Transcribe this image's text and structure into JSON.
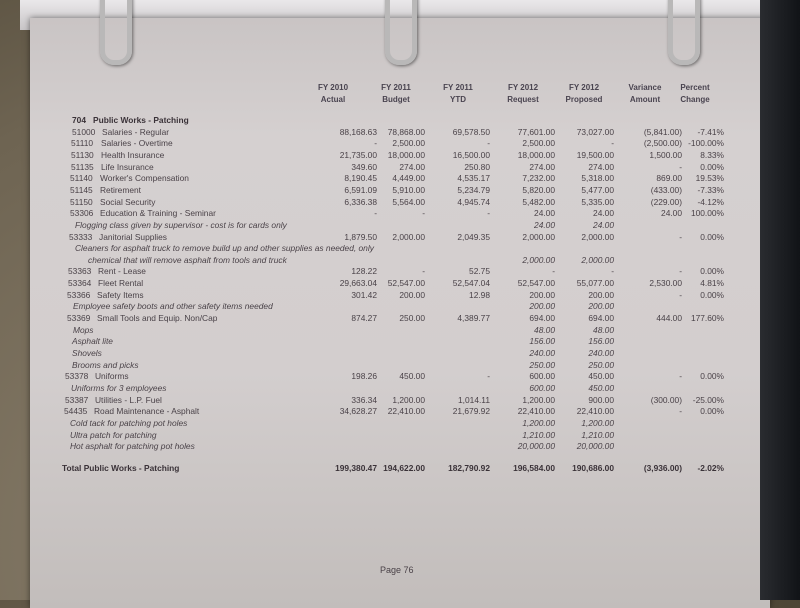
{
  "headers": [
    {
      "line1": "FY 2010",
      "line2": "Actual"
    },
    {
      "line1": "FY 2011",
      "line2": "Budget"
    },
    {
      "line1": "FY 2011",
      "line2": "YTD"
    },
    {
      "line1": "FY 2012",
      "line2": "Request"
    },
    {
      "line1": "FY 2012",
      "line2": "Proposed"
    },
    {
      "line1": "Variance",
      "line2": "Amount"
    },
    {
      "line1": "Percent",
      "line2": "Change"
    }
  ],
  "rows": [
    {
      "code": "704",
      "label": "Public Works - Patching",
      "type": "section",
      "values": [
        "",
        "",
        "",
        "",
        "",
        "",
        ""
      ]
    },
    {
      "code": "51000",
      "label": "Salaries - Regular",
      "values": [
        "88,168.63",
        "78,868.00",
        "69,578.50",
        "77,601.00",
        "73,027.00",
        "(5,841.00)",
        "-7.41%"
      ]
    },
    {
      "code": "51110",
      "label": "Salaries - Overtime",
      "values": [
        "-",
        "2,500.00",
        "-",
        "2,500.00",
        "-",
        "(2,500.00)",
        "-100.00%"
      ]
    },
    {
      "code": "51130",
      "label": "Health Insurance",
      "values": [
        "21,735.00",
        "18,000.00",
        "16,500.00",
        "18,000.00",
        "19,500.00",
        "1,500.00",
        "8.33%"
      ]
    },
    {
      "code": "51135",
      "label": "Life Insurance",
      "values": [
        "349.60",
        "274.00",
        "250.80",
        "274.00",
        "274.00",
        "-",
        "0.00%"
      ]
    },
    {
      "code": "51140",
      "label": "Worker's Compensation",
      "values": [
        "8,190.45",
        "4,449.00",
        "4,535.17",
        "7,232.00",
        "5,318.00",
        "869.00",
        "19.53%"
      ]
    },
    {
      "code": "51145",
      "label": "Retirement",
      "values": [
        "6,591.09",
        "5,910.00",
        "5,234.79",
        "5,820.00",
        "5,477.00",
        "(433.00)",
        "-7.33%"
      ]
    },
    {
      "code": "51150",
      "label": "Social Security",
      "values": [
        "6,336.38",
        "5,564.00",
        "4,945.74",
        "5,482.00",
        "5,335.00",
        "(229.00)",
        "-4.12%"
      ]
    },
    {
      "code": "53306",
      "label": "Education & Training - Seminar",
      "values": [
        "-",
        "-",
        "-",
        "24.00",
        "24.00",
        "24.00",
        "100.00%"
      ]
    },
    {
      "code": "",
      "label": "Flogging class given by supervisor - cost is for cards only",
      "type": "note",
      "values": [
        "",
        "",
        "",
        "24.00",
        "24.00",
        "",
        ""
      ]
    },
    {
      "code": "53333",
      "label": "Janitorial Supplies",
      "values": [
        "1,879.50",
        "2,000.00",
        "2,049.35",
        "2,000.00",
        "2,000.00",
        "-",
        "0.00%"
      ]
    },
    {
      "code": "",
      "label": "Cleaners for asphalt truck to remove build up and other supplies as needed, only",
      "type": "note",
      "values": [
        "",
        "",
        "",
        "",
        "",
        "",
        ""
      ]
    },
    {
      "code": "",
      "label": "chemical that will remove asphalt from tools and truck",
      "type": "note2",
      "values": [
        "",
        "",
        "",
        "2,000.00",
        "2,000.00",
        "",
        ""
      ]
    },
    {
      "code": "53363",
      "label": "Rent - Lease",
      "values": [
        "128.22",
        "-",
        "52.75",
        "-",
        "-",
        "-",
        "0.00%"
      ]
    },
    {
      "code": "53364",
      "label": "Fleet Rental",
      "values": [
        "29,663.04",
        "52,547.00",
        "52,547.04",
        "52,547.00",
        "55,077.00",
        "2,530.00",
        "4.81%"
      ]
    },
    {
      "code": "53366",
      "label": "Safety Items",
      "values": [
        "301.42",
        "200.00",
        "12.98",
        "200.00",
        "200.00",
        "-",
        "0.00%"
      ]
    },
    {
      "code": "",
      "label": "Employee safety boots and other safety items needed",
      "type": "note",
      "values": [
        "",
        "",
        "",
        "200.00",
        "200.00",
        "",
        ""
      ]
    },
    {
      "code": "53369",
      "label": "Small Tools and Equip. Non/Cap",
      "values": [
        "874.27",
        "250.00",
        "4,389.77",
        "694.00",
        "694.00",
        "444.00",
        "177.60%"
      ]
    },
    {
      "code": "",
      "label": "Mops",
      "type": "note",
      "values": [
        "",
        "",
        "",
        "48.00",
        "48.00",
        "",
        ""
      ]
    },
    {
      "code": "",
      "label": "Asphalt lite",
      "type": "note",
      "values": [
        "",
        "",
        "",
        "156.00",
        "156.00",
        "",
        ""
      ]
    },
    {
      "code": "",
      "label": "Shovels",
      "type": "note",
      "values": [
        "",
        "",
        "",
        "240.00",
        "240.00",
        "",
        ""
      ]
    },
    {
      "code": "",
      "label": "Brooms and picks",
      "type": "note",
      "values": [
        "",
        "",
        "",
        "250.00",
        "250.00",
        "",
        ""
      ]
    },
    {
      "code": "53378",
      "label": "Uniforms",
      "values": [
        "198.26",
        "450.00",
        "-",
        "600.00",
        "450.00",
        "-",
        "0.00%"
      ]
    },
    {
      "code": "",
      "label": "Uniforms for 3 employees",
      "type": "note",
      "values": [
        "",
        "",
        "",
        "600.00",
        "450.00",
        "",
        ""
      ]
    },
    {
      "code": "53387",
      "label": "Utilities - L.P. Fuel",
      "values": [
        "336.34",
        "1,200.00",
        "1,014.11",
        "1,200.00",
        "900.00",
        "(300.00)",
        "-25.00%"
      ]
    },
    {
      "code": "54435",
      "label": "Road Maintenance - Asphalt",
      "values": [
        "34,628.27",
        "22,410.00",
        "21,679.92",
        "22,410.00",
        "22,410.00",
        "-",
        "0.00%"
      ]
    },
    {
      "code": "",
      "label": "Cold tack for patching pot holes",
      "type": "note",
      "values": [
        "",
        "",
        "",
        "1,200.00",
        "1,200.00",
        "",
        ""
      ]
    },
    {
      "code": "",
      "label": "Ultra patch for patching",
      "type": "note",
      "values": [
        "",
        "",
        "",
        "1,210.00",
        "1,210.00",
        "",
        ""
      ]
    },
    {
      "code": "",
      "label": "Hot asphalt for patching pot holes",
      "type": "note",
      "values": [
        "",
        "",
        "",
        "20,000.00",
        "20,000.00",
        "",
        ""
      ]
    }
  ],
  "total": {
    "label": "Total Public Works - Patching",
    "values": [
      "199,380.47",
      "194,622.00",
      "182,790.92",
      "196,584.00",
      "190,686.00",
      "(3,936.00)",
      "-2.02%"
    ]
  },
  "footer": {
    "page": "Page 76"
  }
}
